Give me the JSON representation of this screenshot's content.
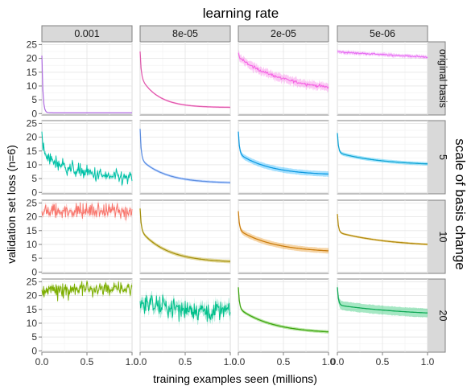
{
  "chart_data": {
    "type": "line",
    "title": "learning rate",
    "xlabel": "training examples seen (millions)",
    "ylabel": "validation set loss (n=6)",
    "facet_row_title": "scale of basis change",
    "x_ticks": [
      "0.0",
      "0.5",
      "1.0"
    ],
    "y_ticks": [
      "0",
      "5",
      "10",
      "15",
      "20",
      "25"
    ],
    "xlim": [
      0,
      1
    ],
    "ylim": [
      -0.5,
      26
    ],
    "grid": true,
    "legend": "none",
    "columns": [
      "0.001",
      "8e-05",
      "2e-05",
      "5e-06"
    ],
    "rows": [
      "original basis",
      "5",
      "10",
      "20"
    ],
    "panels": [
      {
        "row": "original basis",
        "col": "0.001",
        "color": "#c77cff",
        "y0": 21.0,
        "yend": 0.3,
        "fast": 0.97,
        "tau": 0.012,
        "noise": 0.0,
        "band": 0.15,
        "jumpy": false
      },
      {
        "row": "original basis",
        "col": "8e-05",
        "color": "#ff61c3",
        "y0": 22.5,
        "yend": 2.2,
        "fast": 0.45,
        "tau": 0.2,
        "noise": 0.0,
        "band": 0.5,
        "jumpy": false
      },
      {
        "row": "original basis",
        "col": "2e-05",
        "color": "#f564e3",
        "y0": 22.0,
        "yend": 7.5,
        "fast": 0.12,
        "tau": 0.55,
        "noise": 0.25,
        "band": 1.5,
        "jumpy": false
      },
      {
        "row": "original basis",
        "col": "5e-06",
        "color": "#e76bf3",
        "y0": 22.5,
        "yend": 15.8,
        "fast": 0.02,
        "tau": 3.0,
        "noise": 0.15,
        "band": 0.7,
        "jumpy": false
      },
      {
        "row": "5",
        "col": "0.001",
        "color": "#00c1a7",
        "y0": 22.0,
        "yend": 3.8,
        "fast": 0.45,
        "tau": 0.45,
        "noise": 1.3,
        "band": 0.8,
        "jumpy": false
      },
      {
        "row": "5",
        "col": "8e-05",
        "color": "#619cff",
        "y0": 23.0,
        "yend": 3.3,
        "fast": 0.55,
        "tau": 0.28,
        "noise": 0.0,
        "band": 0.7,
        "jumpy": false
      },
      {
        "row": "5",
        "col": "2e-05",
        "color": "#00a9ff",
        "y0": 22.0,
        "yend": 6.2,
        "fast": 0.5,
        "tau": 0.35,
        "noise": 0.0,
        "band": 1.5,
        "jumpy": false
      },
      {
        "row": "5",
        "col": "5e-06",
        "color": "#00b4f0",
        "y0": 21.5,
        "yend": 9.7,
        "fast": 0.6,
        "tau": 0.5,
        "noise": 0.0,
        "band": 1.0,
        "jumpy": false
      },
      {
        "row": "10",
        "col": "0.001",
        "color": "#f8766d",
        "y0": 22.0,
        "yend": 22.0,
        "fast": 0.0,
        "tau": 0.3,
        "noise": 1.4,
        "band": 1.2,
        "jumpy": true
      },
      {
        "row": "10",
        "col": "8e-05",
        "color": "#b79f00",
        "y0": 23.0,
        "yend": 3.4,
        "fast": 0.4,
        "tau": 0.3,
        "noise": 0.0,
        "band": 1.0,
        "jumpy": false
      },
      {
        "row": "10",
        "col": "2e-05",
        "color": "#e58700",
        "y0": 22.0,
        "yend": 7.0,
        "fast": 0.45,
        "tau": 0.4,
        "noise": 0.0,
        "band": 1.5,
        "jumpy": false
      },
      {
        "row": "10",
        "col": "5e-06",
        "color": "#c99800",
        "y0": 21.0,
        "yend": 9.0,
        "fast": 0.55,
        "tau": 0.6,
        "noise": 0.0,
        "band": 0.6,
        "jumpy": false
      },
      {
        "row": "20",
        "col": "0.001",
        "color": "#7cae00",
        "y0": 22.0,
        "yend": 22.5,
        "fast": 0.0,
        "tau": 0.3,
        "noise": 1.2,
        "band": 1.0,
        "jumpy": true
      },
      {
        "row": "20",
        "col": "8e-05",
        "color": "#00c08b",
        "y0": 18.0,
        "yend": 14.0,
        "fast": 0.05,
        "tau": 0.4,
        "noise": 1.8,
        "band": 2.0,
        "jumpy": false
      },
      {
        "row": "20",
        "col": "2e-05",
        "color": "#39b600",
        "y0": 23.0,
        "yend": 6.2,
        "fast": 0.45,
        "tau": 0.38,
        "noise": 0.0,
        "band": 0.9,
        "jumpy": false
      },
      {
        "row": "20",
        "col": "5e-06",
        "color": "#00bc56",
        "y0": 23.0,
        "yend": 12.3,
        "fast": 0.6,
        "tau": 0.9,
        "noise": 0.0,
        "band": 2.5,
        "jumpy": false
      }
    ]
  }
}
